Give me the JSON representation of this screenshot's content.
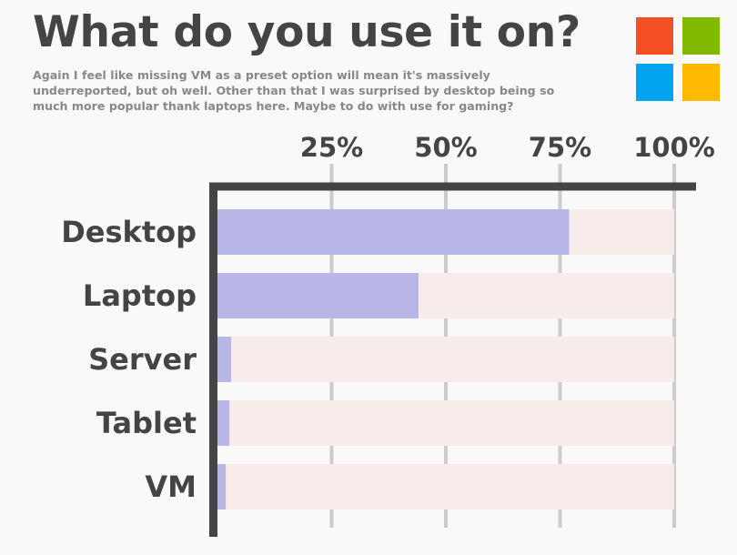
{
  "title": "What do you use it on?",
  "subtitle": "Again I feel like missing VM as a preset option will mean it's massively underreported, but oh well. Other than that I was surprised by desktop being so much more popular thank laptops here. Maybe to do with use for gaming?",
  "logo": {
    "name": "windows-logo",
    "colors": [
      "#f25022",
      "#7fba00",
      "#00a4ef",
      "#ffb900"
    ]
  },
  "colors": {
    "bar": "#b8b6e6",
    "track": "#f7ecea",
    "axis": "#444444",
    "grid": "#cccccc"
  },
  "chart_data": {
    "type": "bar",
    "orientation": "horizontal",
    "categories": [
      "Desktop",
      "Laptop",
      "Server",
      "Tablet",
      "VM"
    ],
    "values": [
      77,
      44,
      3,
      2.6,
      1.8
    ],
    "xlim": [
      0,
      100
    ],
    "xticks": [
      "25%",
      "50%",
      "75%",
      "100%"
    ],
    "xtick_values": [
      25,
      50,
      75,
      100
    ],
    "axis_position": "top",
    "grid": true
  }
}
